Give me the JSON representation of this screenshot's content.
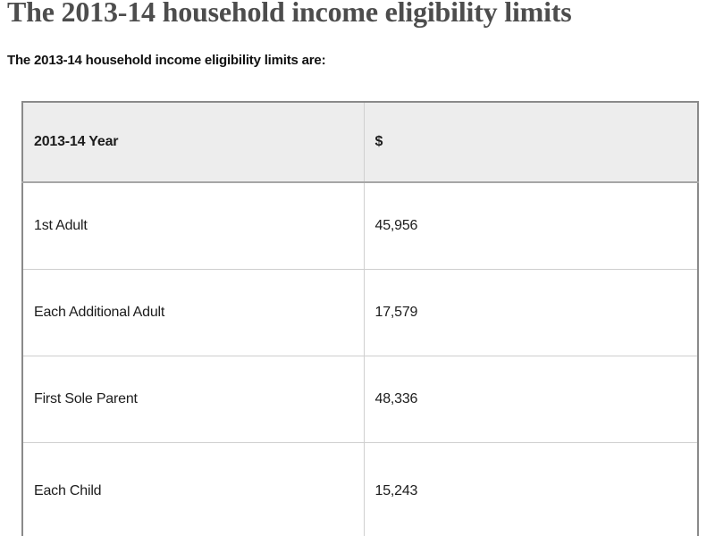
{
  "page": {
    "title": "The 2013-14 household income eligibility limits",
    "intro": "The 2013-14 household income eligibility limits are:"
  },
  "table": {
    "header": {
      "year_column": "2013-14 Year",
      "amount_column": "$"
    },
    "rows": [
      {
        "label": "1st Adult",
        "value": "45,956"
      },
      {
        "label": "Each Additional Adult",
        "value": "17,579"
      },
      {
        "label": "First Sole Parent",
        "value": "48,336"
      },
      {
        "label": "Each Child",
        "value": "15,243"
      }
    ]
  },
  "colors": {
    "header_bg": "#ededed",
    "outer_border": "#8a8a8a",
    "inner_border": "#cfcfcf",
    "header_border": "#a6a6a6",
    "title_text": "#4d4d4d",
    "body_text": "#1c1c1c"
  }
}
